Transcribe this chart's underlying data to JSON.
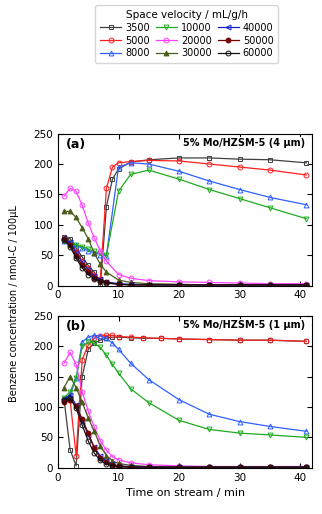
{
  "legend_title": "Space velocity / mL/g/h",
  "ylabel": "Benzene concentration / nmol-C / 100μL",
  "xlabel": "Time on stream / min",
  "title_a": "5% Mo/HZSM-5 (4 μm)",
  "title_b": "5% Mo/HZSM-5 (1 μm)",
  "label_a": "(a)",
  "label_b": "(b)",
  "ylim": [
    0,
    250
  ],
  "xlim": [
    0,
    42
  ],
  "yticks": [
    0,
    50,
    100,
    150,
    200,
    250
  ],
  "xticks": [
    0,
    10,
    20,
    30,
    40
  ],
  "series": [
    {
      "label": "3500",
      "color": "#404040",
      "marker": "s",
      "filled": false
    },
    {
      "label": "5000",
      "color": "#ff2020",
      "marker": "o",
      "filled": false
    },
    {
      "label": "8000",
      "color": "#3060ff",
      "marker": "^",
      "filled": false
    },
    {
      "label": "10000",
      "color": "#20aa20",
      "marker": "v",
      "filled": false
    },
    {
      "label": "20000",
      "color": "#ff40ff",
      "marker": "o",
      "filled": false
    },
    {
      "label": "30000",
      "color": "#4a5c1a",
      "marker": "^",
      "filled": true
    },
    {
      "label": "40000",
      "color": "#1020cc",
      "marker": "<",
      "filled": false
    },
    {
      "label": "50000",
      "color": "#770000",
      "marker": "o",
      "filled": true
    },
    {
      "label": "60000",
      "color": "#111111",
      "marker": "o",
      "filled": false
    }
  ],
  "data_a": {
    "3500": {
      "x": [
        1,
        2,
        3,
        4,
        5,
        6,
        7,
        8,
        9,
        10,
        12,
        15,
        20,
        25,
        30,
        35,
        41
      ],
      "y": [
        80,
        77,
        62,
        47,
        33,
        22,
        0,
        130,
        175,
        192,
        203,
        207,
        210,
        210,
        208,
        207,
        202
      ]
    },
    "5000": {
      "x": [
        1,
        2,
        3,
        4,
        5,
        6,
        7,
        8,
        9,
        10,
        12,
        15,
        20,
        25,
        30,
        35,
        41
      ],
      "y": [
        77,
        72,
        57,
        40,
        28,
        18,
        10,
        160,
        195,
        202,
        204,
        206,
        205,
        200,
        195,
        190,
        182
      ]
    },
    "8000": {
      "x": [
        1,
        2,
        3,
        4,
        5,
        6,
        7,
        8,
        10,
        12,
        15,
        20,
        25,
        30,
        35,
        41
      ],
      "y": [
        74,
        70,
        66,
        62,
        57,
        54,
        51,
        49,
        195,
        202,
        200,
        188,
        172,
        158,
        145,
        133
      ]
    },
    "10000": {
      "x": [
        1,
        2,
        3,
        4,
        5,
        6,
        7,
        8,
        10,
        12,
        15,
        20,
        25,
        30,
        35,
        41
      ],
      "y": [
        74,
        70,
        67,
        64,
        60,
        56,
        53,
        50,
        155,
        183,
        190,
        175,
        158,
        143,
        128,
        110
      ]
    },
    "20000": {
      "x": [
        1,
        2,
        3,
        4,
        5,
        6,
        7,
        8,
        10,
        12,
        15,
        20,
        25,
        30,
        35,
        41
      ],
      "y": [
        147,
        160,
        155,
        132,
        103,
        78,
        57,
        40,
        18,
        12,
        8,
        6,
        5,
        4,
        3,
        3
      ]
    },
    "30000": {
      "x": [
        1,
        2,
        3,
        4,
        5,
        6,
        7,
        8,
        10,
        12,
        15,
        20,
        25,
        30,
        35,
        41
      ],
      "y": [
        122,
        122,
        112,
        95,
        77,
        53,
        35,
        22,
        9,
        5,
        3,
        2,
        1,
        1,
        1,
        1
      ]
    },
    "40000": {
      "x": [
        1,
        2,
        3,
        4,
        5,
        6,
        7,
        8,
        10,
        12,
        15,
        20,
        25,
        30,
        35,
        41
      ],
      "y": [
        78,
        71,
        54,
        38,
        26,
        16,
        10,
        6,
        3,
        2,
        1,
        1,
        1,
        1,
        1,
        1
      ]
    },
    "50000": {
      "x": [
        1,
        2,
        3,
        4,
        5,
        6,
        7,
        8,
        10,
        12,
        15,
        20,
        25,
        30,
        35,
        41
      ],
      "y": [
        77,
        67,
        49,
        33,
        22,
        13,
        8,
        5,
        2,
        1,
        1,
        1,
        1,
        1,
        1,
        1
      ]
    },
    "60000": {
      "x": [
        1,
        2,
        3,
        4,
        5,
        6,
        7,
        8,
        10,
        12,
        15,
        20,
        25,
        30,
        35,
        41
      ],
      "y": [
        75,
        64,
        45,
        29,
        18,
        11,
        7,
        4,
        2,
        1,
        1,
        1,
        1,
        1,
        1,
        1
      ]
    }
  },
  "data_b": {
    "3500": {
      "x": [
        1,
        2,
        3,
        4,
        5,
        6,
        7,
        8,
        9,
        10,
        12,
        14,
        17,
        20,
        25,
        30,
        35,
        41
      ],
      "y": [
        113,
        30,
        3,
        150,
        195,
        205,
        210,
        213,
        215,
        215,
        214,
        213,
        213,
        212,
        211,
        210,
        210,
        208
      ]
    },
    "5000": {
      "x": [
        1,
        2,
        3,
        4,
        5,
        6,
        7,
        8,
        9,
        10,
        12,
        14,
        17,
        20,
        25,
        30,
        35,
        41
      ],
      "y": [
        113,
        112,
        20,
        178,
        202,
        213,
        217,
        218,
        218,
        216,
        215,
        214,
        213,
        212,
        211,
        210,
        210,
        208
      ]
    },
    "8000": {
      "x": [
        1,
        2,
        3,
        4,
        5,
        6,
        7,
        8,
        9,
        10,
        12,
        15,
        20,
        25,
        30,
        35,
        41
      ],
      "y": [
        113,
        120,
        147,
        207,
        215,
        218,
        217,
        213,
        205,
        195,
        172,
        145,
        112,
        88,
        76,
        68,
        60
      ]
    },
    "10000": {
      "x": [
        1,
        2,
        3,
        4,
        5,
        6,
        7,
        8,
        9,
        10,
        12,
        15,
        20,
        25,
        30,
        35,
        41
      ],
      "y": [
        115,
        125,
        148,
        200,
        207,
        205,
        198,
        185,
        170,
        156,
        130,
        107,
        78,
        63,
        57,
        54,
        50
      ]
    },
    "20000": {
      "x": [
        1,
        2,
        3,
        4,
        5,
        6,
        7,
        8,
        9,
        10,
        12,
        15,
        20,
        25,
        30,
        35,
        41
      ],
      "y": [
        172,
        190,
        170,
        125,
        93,
        67,
        44,
        29,
        18,
        13,
        8,
        5,
        3,
        2,
        2,
        2,
        2
      ]
    },
    "30000": {
      "x": [
        1,
        2,
        3,
        4,
        5,
        6,
        7,
        8,
        9,
        10,
        12,
        15,
        20,
        25,
        30,
        35,
        41
      ],
      "y": [
        132,
        150,
        132,
        108,
        82,
        60,
        36,
        20,
        11,
        7,
        4,
        2,
        1,
        1,
        1,
        1,
        1
      ]
    },
    "40000": {
      "x": [
        1,
        2,
        3,
        4,
        5,
        6,
        7,
        8,
        9,
        10,
        12,
        15,
        20,
        25,
        30,
        35,
        41
      ],
      "y": [
        113,
        120,
        103,
        77,
        54,
        34,
        19,
        11,
        6,
        3,
        2,
        1,
        1,
        1,
        1,
        1,
        1
      ]
    },
    "50000": {
      "x": [
        1,
        2,
        3,
        4,
        5,
        6,
        7,
        8,
        9,
        10,
        12,
        15,
        20,
        25,
        30,
        35,
        41
      ],
      "y": [
        108,
        112,
        102,
        80,
        57,
        32,
        16,
        9,
        5,
        3,
        1,
        1,
        1,
        1,
        1,
        1,
        1
      ]
    },
    "60000": {
      "x": [
        1,
        2,
        3,
        4,
        5,
        6,
        7,
        8,
        9,
        10,
        12,
        15,
        20,
        25,
        30,
        35,
        41
      ],
      "y": [
        112,
        115,
        98,
        70,
        44,
        24,
        12,
        6,
        3,
        1,
        1,
        1,
        1,
        1,
        1,
        1,
        1
      ]
    }
  }
}
